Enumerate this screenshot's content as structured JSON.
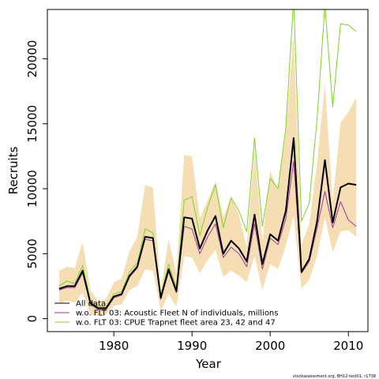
{
  "chart_data": {
    "type": "line",
    "xlabel": "Year",
    "ylabel": "Recruits",
    "xlim": [
      1971.5,
      2012.5
    ],
    "ylim": [
      -1000,
      23800
    ],
    "x_ticks": [
      1980,
      1990,
      2000,
      2010
    ],
    "y_ticks": [
      0,
      5000,
      10000,
      15000,
      20000
    ],
    "x_tick_labels": [
      "1980",
      "1990",
      "2000",
      "2010"
    ],
    "y_tick_labels": [
      "0",
      "5000",
      "10000",
      "15000",
      "20000"
    ],
    "legend_position": "bottom-left",
    "footer": "stockassessment.org, BH12-test01, r1738",
    "years": [
      1973,
      1974,
      1975,
      1976,
      1977,
      1978,
      1979,
      1980,
      1981,
      1982,
      1983,
      1984,
      1985,
      1986,
      1987,
      1988,
      1989,
      1990,
      1991,
      1992,
      1993,
      1994,
      1995,
      1996,
      1997,
      1998,
      1999,
      2000,
      2001,
      2002,
      2003,
      2004,
      2005,
      2006,
      2007,
      2008,
      2009,
      2010,
      2011
    ],
    "confidence_band": {
      "color": "#f5deb3",
      "upper": [
        3700,
        4000,
        3900,
        5900,
        2200,
        1300,
        1500,
        2800,
        3100,
        5200,
        6300,
        10300,
        10100,
        2200,
        6100,
        3500,
        12600,
        12500,
        7700,
        9100,
        10600,
        7800,
        9400,
        8000,
        5500,
        13200,
        6000,
        11400,
        9900,
        14300,
        22000,
        5700,
        7300,
        12000,
        18100,
        9000,
        15100,
        15900,
        17000
      ],
      "lower": [
        1100,
        1400,
        1200,
        2000,
        300,
        200,
        300,
        1000,
        1100,
        2200,
        2500,
        3800,
        3700,
        600,
        1900,
        900,
        4800,
        4700,
        3500,
        4500,
        5300,
        3200,
        3700,
        3300,
        2800,
        4800,
        2200,
        4200,
        3800,
        5600,
        7900,
        2300,
        3000,
        4800,
        7800,
        5100,
        6700,
        6800,
        6300
      ]
    },
    "series": [
      {
        "name": "All data",
        "color": "#000000",
        "width": 2,
        "values": [
          2300,
          2500,
          2500,
          3700,
          1200,
          800,
          800,
          1700,
          1900,
          3300,
          4000,
          6300,
          6200,
          1600,
          3800,
          2100,
          7800,
          7700,
          5400,
          6800,
          7900,
          5000,
          6000,
          5400,
          4400,
          8000,
          4200,
          6500,
          6000,
          8300,
          13900,
          3600,
          4600,
          7500,
          12200,
          7400,
          10100,
          10400,
          10300
        ]
      },
      {
        "name": "w.o. FLT 03: Acoustic Fleet  N of individuals, millions",
        "color": "#a03a9e",
        "width": 1,
        "values": [
          2200,
          2400,
          2400,
          3500,
          1100,
          700,
          700,
          1600,
          1800,
          3200,
          3900,
          6100,
          6000,
          1500,
          3600,
          2000,
          7100,
          6900,
          5000,
          6300,
          7300,
          4700,
          5500,
          5000,
          4000,
          7300,
          3800,
          6200,
          5700,
          7700,
          12100,
          3500,
          4400,
          7000,
          9800,
          7000,
          9000,
          7600,
          7100
        ]
      },
      {
        "name": "w.o. FLT 03: CPUE Trapnet fleet area 23, 42 and 47",
        "color": "#7fd12a",
        "width": 1,
        "values": [
          2500,
          2900,
          2700,
          4100,
          1400,
          900,
          900,
          1900,
          2100,
          3600,
          4300,
          6900,
          6600,
          1800,
          4200,
          2400,
          9100,
          9400,
          6400,
          8600,
          10300,
          7000,
          9300,
          8300,
          6700,
          13900,
          7100,
          10800,
          10000,
          14700,
          24600,
          7500,
          8900,
          15400,
          24100,
          16300,
          22700,
          22600,
          22100
        ]
      }
    ]
  }
}
